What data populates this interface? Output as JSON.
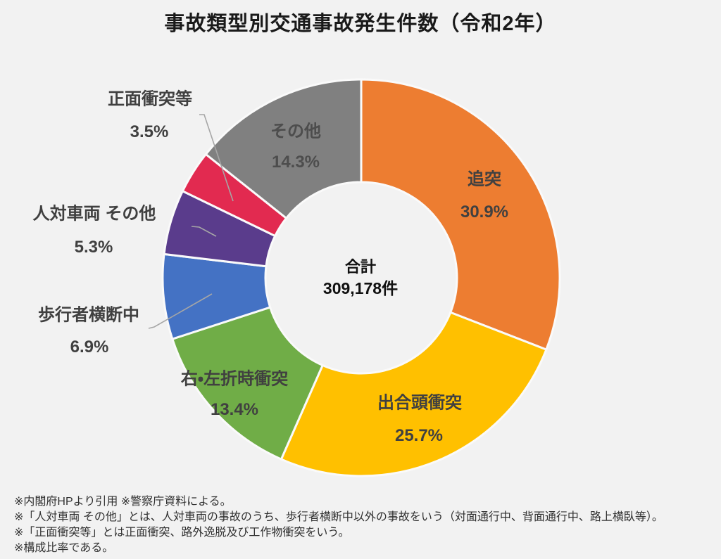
{
  "title": "事故類型別交通事故発生件数（令和2年）",
  "center": {
    "label": "合計",
    "value": "309,178件"
  },
  "chart_data": {
    "type": "pie",
    "subtype": "donut",
    "title": "事故類型別交通事故発生件数（令和2年）",
    "unit": "%",
    "total_label": "合計",
    "total_value": "309,178件",
    "start_angle_deg": 0,
    "direction": "clockwise",
    "background": "#F2F2F2",
    "legend": "none",
    "segments": [
      {
        "label": "追突",
        "value": 30.9,
        "color": "#ED7D31",
        "label_placement": "inside"
      },
      {
        "label": "出合頭衝突",
        "value": 25.7,
        "color": "#FFC000",
        "label_placement": "inside"
      },
      {
        "label": "右・左折時衝突",
        "value": 13.4,
        "color": "#70AD47",
        "label_placement": "inside"
      },
      {
        "label": "歩行者横断中",
        "value": 6.9,
        "color": "#4472C4",
        "label_placement": "outside"
      },
      {
        "label": "人対車両 その他",
        "value": 5.3,
        "color": "#5A3C8C",
        "label_placement": "outside"
      },
      {
        "label": "正面衝突等",
        "value": 3.5,
        "color": "#E22A50",
        "label_placement": "outside"
      },
      {
        "label": "その他",
        "value": 14.3,
        "color": "#808080",
        "label_placement": "inside"
      }
    ]
  },
  "notes": [
    "※内閣府HPより引用 ※警察庁資料による。",
    "※「人対車両 その他」とは、人対車両の事故のうち、歩行者横断中以外の事故をいう（対面通行中、背面通行中、路上横臥等）。",
    "※「正面衝突等」とは正面衝突、路外逸脱及び工作物衝突をいう。",
    "※構成比率である。"
  ]
}
